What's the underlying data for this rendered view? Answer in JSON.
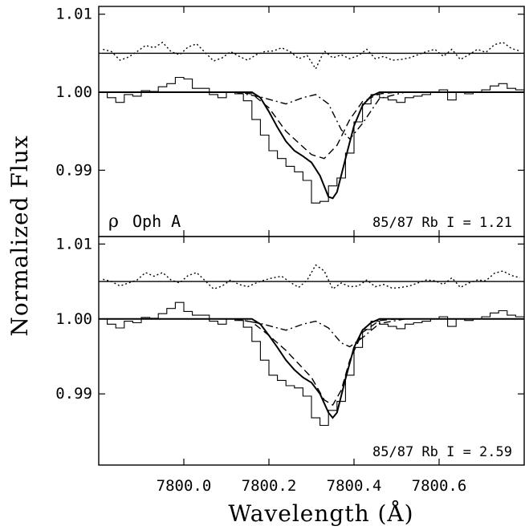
{
  "chart_data": {
    "type": "line",
    "ylabel": "Normalized Flux",
    "xlabel": "Wavelength (Å)",
    "xlim": [
      7799.8,
      7800.8
    ],
    "x_ticks": [
      "7800.0",
      "7800.2",
      "7800.4",
      "7800.6"
    ],
    "panels": [
      {
        "star_symbol": "ρ",
        "star_name": "Oph A",
        "ratio_label": "85/87 Rb I = 1.21",
        "ylim": [
          0.9815,
          1.011
        ],
        "y_ticks": [
          "1.01",
          "1.00",
          "0.99"
        ],
        "residual_offset": 1.005,
        "series": [
          {
            "style": "histogram",
            "x": [
              7799.81,
              7799.83,
              7799.85,
              7799.87,
              7799.89,
              7799.91,
              7799.93,
              7799.95,
              7799.97,
              7799.99,
              7800.01,
              7800.03,
              7800.05,
              7800.07,
              7800.09,
              7800.11,
              7800.13,
              7800.15,
              7800.17,
              7800.19,
              7800.21,
              7800.23,
              7800.25,
              7800.27,
              7800.29,
              7800.31,
              7800.33,
              7800.35,
              7800.37,
              7800.39,
              7800.41,
              7800.43,
              7800.45,
              7800.47,
              7800.49,
              7800.51,
              7800.53,
              7800.55,
              7800.57,
              7800.59,
              7800.61,
              7800.63,
              7800.65,
              7800.67,
              7800.69,
              7800.71,
              7800.73,
              7800.75,
              7800.77,
              7800.79
            ],
            "y": [
              1.0,
              0.9993,
              0.9987,
              0.9997,
              0.9995,
              1.0002,
              1.0001,
              1.0007,
              1.0011,
              1.0019,
              1.0017,
              1.0005,
              1.0005,
              0.9997,
              0.9993,
              1.0,
              0.9998,
              0.9989,
              0.9965,
              0.9945,
              0.9925,
              0.9915,
              0.9905,
              0.9898,
              0.9887,
              0.9858,
              0.986,
              0.988,
              0.989,
              0.9922,
              0.9962,
              0.9985,
              0.9997,
              0.9993,
              0.999,
              0.9987,
              0.9993,
              0.9995,
              0.9997,
              1.0,
              1.0003,
              0.999,
              1.0,
              0.9998,
              1.0,
              1.0003,
              1.0008,
              1.0011,
              1.0005,
              1.0003
            ]
          },
          {
            "style": "solid",
            "name": "fit",
            "x": [
              7799.8,
              7800.16,
              7800.18,
              7800.2,
              7800.22,
              7800.24,
              7800.26,
              7800.28,
              7800.3,
              7800.32,
              7800.34,
              7800.35,
              7800.36,
              7800.38,
              7800.4,
              7800.42,
              7800.44,
              7800.46,
              7800.8
            ],
            "y": [
              1.0,
              1.0,
              0.9993,
              0.9975,
              0.9955,
              0.9937,
              0.9925,
              0.9918,
              0.991,
              0.9893,
              0.9866,
              0.9864,
              0.9872,
              0.9915,
              0.9957,
              0.9983,
              0.9995,
              1.0,
              1.0
            ]
          },
          {
            "style": "dashed",
            "name": "component 1",
            "x": [
              7799.8,
              7800.12,
              7800.16,
              7800.2,
              7800.24,
              7800.27,
              7800.3,
              7800.33,
              7800.36,
              7800.39,
              7800.42,
              7800.46,
              7800.5,
              7800.8
            ],
            "y": [
              1.0,
              1.0,
              0.9998,
              0.998,
              0.995,
              0.9935,
              0.992,
              0.9915,
              0.9932,
              0.9965,
              0.9988,
              0.9998,
              1.0,
              1.0
            ]
          },
          {
            "style": "dash-dot",
            "name": "component 2",
            "x": [
              7799.8,
              7800.12,
              7800.18,
              7800.24,
              7800.28,
              7800.31,
              7800.34,
              7800.37,
              7800.39,
              7800.42,
              7800.46,
              7800.52,
              7800.8
            ],
            "y": [
              1.0,
              1.0,
              0.9994,
              0.9985,
              0.9993,
              0.9997,
              0.9985,
              0.9952,
              0.994,
              0.996,
              0.9992,
              1.0,
              1.0
            ]
          },
          {
            "style": "solid",
            "name": "residual zero",
            "x": [
              7799.8,
              7800.8
            ],
            "y": [
              1.005,
              1.005
            ]
          },
          {
            "style": "dotted",
            "name": "residuals",
            "x": [
              7799.81,
              7799.83,
              7799.85,
              7799.87,
              7799.89,
              7799.91,
              7799.93,
              7799.95,
              7799.97,
              7799.99,
              7800.01,
              7800.03,
              7800.05,
              7800.07,
              7800.09,
              7800.11,
              7800.13,
              7800.15,
              7800.17,
              7800.19,
              7800.21,
              7800.23,
              7800.25,
              7800.27,
              7800.29,
              7800.31,
              7800.33,
              7800.35,
              7800.37,
              7800.39,
              7800.41,
              7800.43,
              7800.45,
              7800.47,
              7800.49,
              7800.51,
              7800.53,
              7800.55,
              7800.57,
              7800.59,
              7800.61,
              7800.63,
              7800.65,
              7800.67,
              7800.69,
              7800.71,
              7800.73,
              7800.75,
              7800.77,
              7800.79
            ],
            "y": [
              1.0055,
              1.0052,
              1.0041,
              1.0045,
              1.0052,
              1.006,
              1.0057,
              1.0064,
              1.0052,
              1.0048,
              1.0058,
              1.0062,
              1.0051,
              1.004,
              1.0044,
              1.0052,
              1.0046,
              1.0041,
              1.0048,
              1.0052,
              1.0053,
              1.0057,
              1.0052,
              1.0043,
              1.0047,
              1.003,
              1.0053,
              1.0044,
              1.0048,
              1.0043,
              1.0047,
              1.0055,
              1.0043,
              1.0046,
              1.0041,
              1.0042,
              1.0044,
              1.0048,
              1.0052,
              1.0055,
              1.0046,
              1.0055,
              1.0042,
              1.0048,
              1.0055,
              1.0051,
              1.0061,
              1.0064,
              1.0056,
              1.0053
            ]
          }
        ]
      },
      {
        "star_symbol": "",
        "star_name": "",
        "ratio_label": "85/87 Rb I = 2.59",
        "ylim": [
          0.9805,
          1.011
        ],
        "y_ticks": [
          "1.01",
          "1.00",
          "0.99"
        ],
        "residual_offset": 1.005,
        "series": [
          {
            "style": "histogram",
            "x": [
              7799.81,
              7799.83,
              7799.85,
              7799.87,
              7799.89,
              7799.91,
              7799.93,
              7799.95,
              7799.97,
              7799.99,
              7800.01,
              7800.03,
              7800.05,
              7800.07,
              7800.09,
              7800.11,
              7800.13,
              7800.15,
              7800.17,
              7800.19,
              7800.21,
              7800.23,
              7800.25,
              7800.27,
              7800.29,
              7800.31,
              7800.33,
              7800.35,
              7800.37,
              7800.39,
              7800.41,
              7800.43,
              7800.45,
              7800.47,
              7800.49,
              7800.51,
              7800.53,
              7800.55,
              7800.57,
              7800.59,
              7800.61,
              7800.63,
              7800.65,
              7800.67,
              7800.69,
              7800.71,
              7800.73,
              7800.75,
              7800.77,
              7800.79
            ],
            "y": [
              1.0,
              0.9993,
              0.9988,
              0.9997,
              0.9995,
              1.0002,
              1.0001,
              1.0007,
              1.0014,
              1.0022,
              1.001,
              1.0005,
              1.0005,
              0.9997,
              0.9993,
              1.0,
              0.9998,
              0.9989,
              0.997,
              0.9945,
              0.9925,
              0.9918,
              0.9911,
              0.9908,
              0.9897,
              0.9868,
              0.9858,
              0.9878,
              0.989,
              0.9925,
              0.9962,
              0.9986,
              0.9997,
              0.9993,
              0.999,
              0.9987,
              0.9993,
              0.9995,
              0.9997,
              1.0,
              1.0003,
              0.999,
              1.0,
              0.9998,
              1.0,
              1.0003,
              1.0008,
              1.0011,
              1.0005,
              1.0003
            ]
          },
          {
            "style": "solid",
            "name": "fit",
            "x": [
              7799.8,
              7800.16,
              7800.18,
              7800.2,
              7800.22,
              7800.24,
              7800.26,
              7800.28,
              7800.3,
              7800.32,
              7800.34,
              7800.35,
              7800.36,
              7800.38,
              7800.4,
              7800.42,
              7800.44,
              7800.46,
              7800.8
            ],
            "y": [
              1.0,
              1.0,
              0.9993,
              0.9978,
              0.9962,
              0.9945,
              0.9932,
              0.9922,
              0.9915,
              0.99,
              0.9875,
              0.9868,
              0.9875,
              0.992,
              0.9962,
              0.9985,
              0.9995,
              1.0,
              1.0
            ]
          },
          {
            "style": "dashed",
            "name": "component 1",
            "x": [
              7799.8,
              7800.12,
              7800.16,
              7800.2,
              7800.24,
              7800.27,
              7800.3,
              7800.33,
              7800.35,
              7800.37,
              7800.39,
              7800.42,
              7800.46,
              7800.5,
              7800.8
            ],
            "y": [
              1.0,
              1.0,
              0.9996,
              0.9978,
              0.9958,
              0.994,
              0.9922,
              0.9892,
              0.9885,
              0.9905,
              0.9945,
              0.9982,
              0.9998,
              1.0,
              1.0
            ]
          },
          {
            "style": "dash-dot",
            "name": "component 2",
            "x": [
              7799.8,
              7800.12,
              7800.18,
              7800.24,
              7800.28,
              7800.31,
              7800.34,
              7800.37,
              7800.39,
              7800.42,
              7800.46,
              7800.52,
              7800.8
            ],
            "y": [
              1.0,
              1.0,
              0.9994,
              0.9985,
              0.9993,
              0.9997,
              0.9988,
              0.9968,
              0.9963,
              0.9975,
              0.9994,
              1.0,
              1.0
            ]
          },
          {
            "style": "solid",
            "name": "residual zero",
            "x": [
              7799.8,
              7800.8
            ],
            "y": [
              1.005,
              1.005
            ]
          },
          {
            "style": "dotted",
            "name": "residuals",
            "x": [
              7799.81,
              7799.83,
              7799.85,
              7799.87,
              7799.89,
              7799.91,
              7799.93,
              7799.95,
              7799.97,
              7799.99,
              7800.01,
              7800.03,
              7800.05,
              7800.07,
              7800.09,
              7800.11,
              7800.13,
              7800.15,
              7800.17,
              7800.19,
              7800.21,
              7800.23,
              7800.25,
              7800.27,
              7800.29,
              7800.31,
              7800.33,
              7800.35,
              7800.37,
              7800.39,
              7800.41,
              7800.43,
              7800.45,
              7800.47,
              7800.49,
              7800.51,
              7800.53,
              7800.55,
              7800.57,
              7800.59,
              7800.61,
              7800.63,
              7800.65,
              7800.67,
              7800.69,
              7800.71,
              7800.73,
              7800.75,
              7800.77,
              7800.79
            ],
            "y": [
              1.0053,
              1.005,
              1.0044,
              1.0048,
              1.0052,
              1.0062,
              1.0057,
              1.0062,
              1.0052,
              1.0048,
              1.0058,
              1.0062,
              1.0051,
              1.004,
              1.0044,
              1.0052,
              1.0046,
              1.0043,
              1.0048,
              1.0052,
              1.0055,
              1.0057,
              1.0049,
              1.0042,
              1.0052,
              1.0072,
              1.0064,
              1.004,
              1.0048,
              1.0043,
              1.0044,
              1.0052,
              1.0043,
              1.0046,
              1.0041,
              1.0042,
              1.0044,
              1.0048,
              1.0052,
              1.0051,
              1.0046,
              1.0055,
              1.0042,
              1.0048,
              1.0052,
              1.0051,
              1.0061,
              1.0064,
              1.0058,
              1.0055
            ]
          }
        ]
      }
    ]
  }
}
